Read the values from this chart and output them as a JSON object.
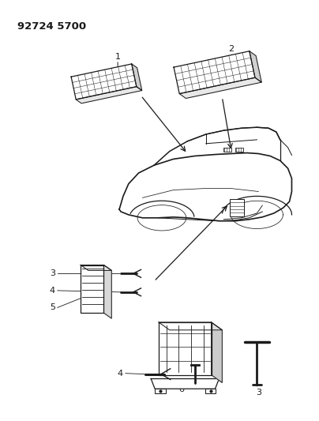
{
  "title": "92724 5700",
  "bg_color": "#ffffff",
  "line_color": "#1a1a1a",
  "fig_width": 4.04,
  "fig_height": 5.33,
  "dpi": 100
}
